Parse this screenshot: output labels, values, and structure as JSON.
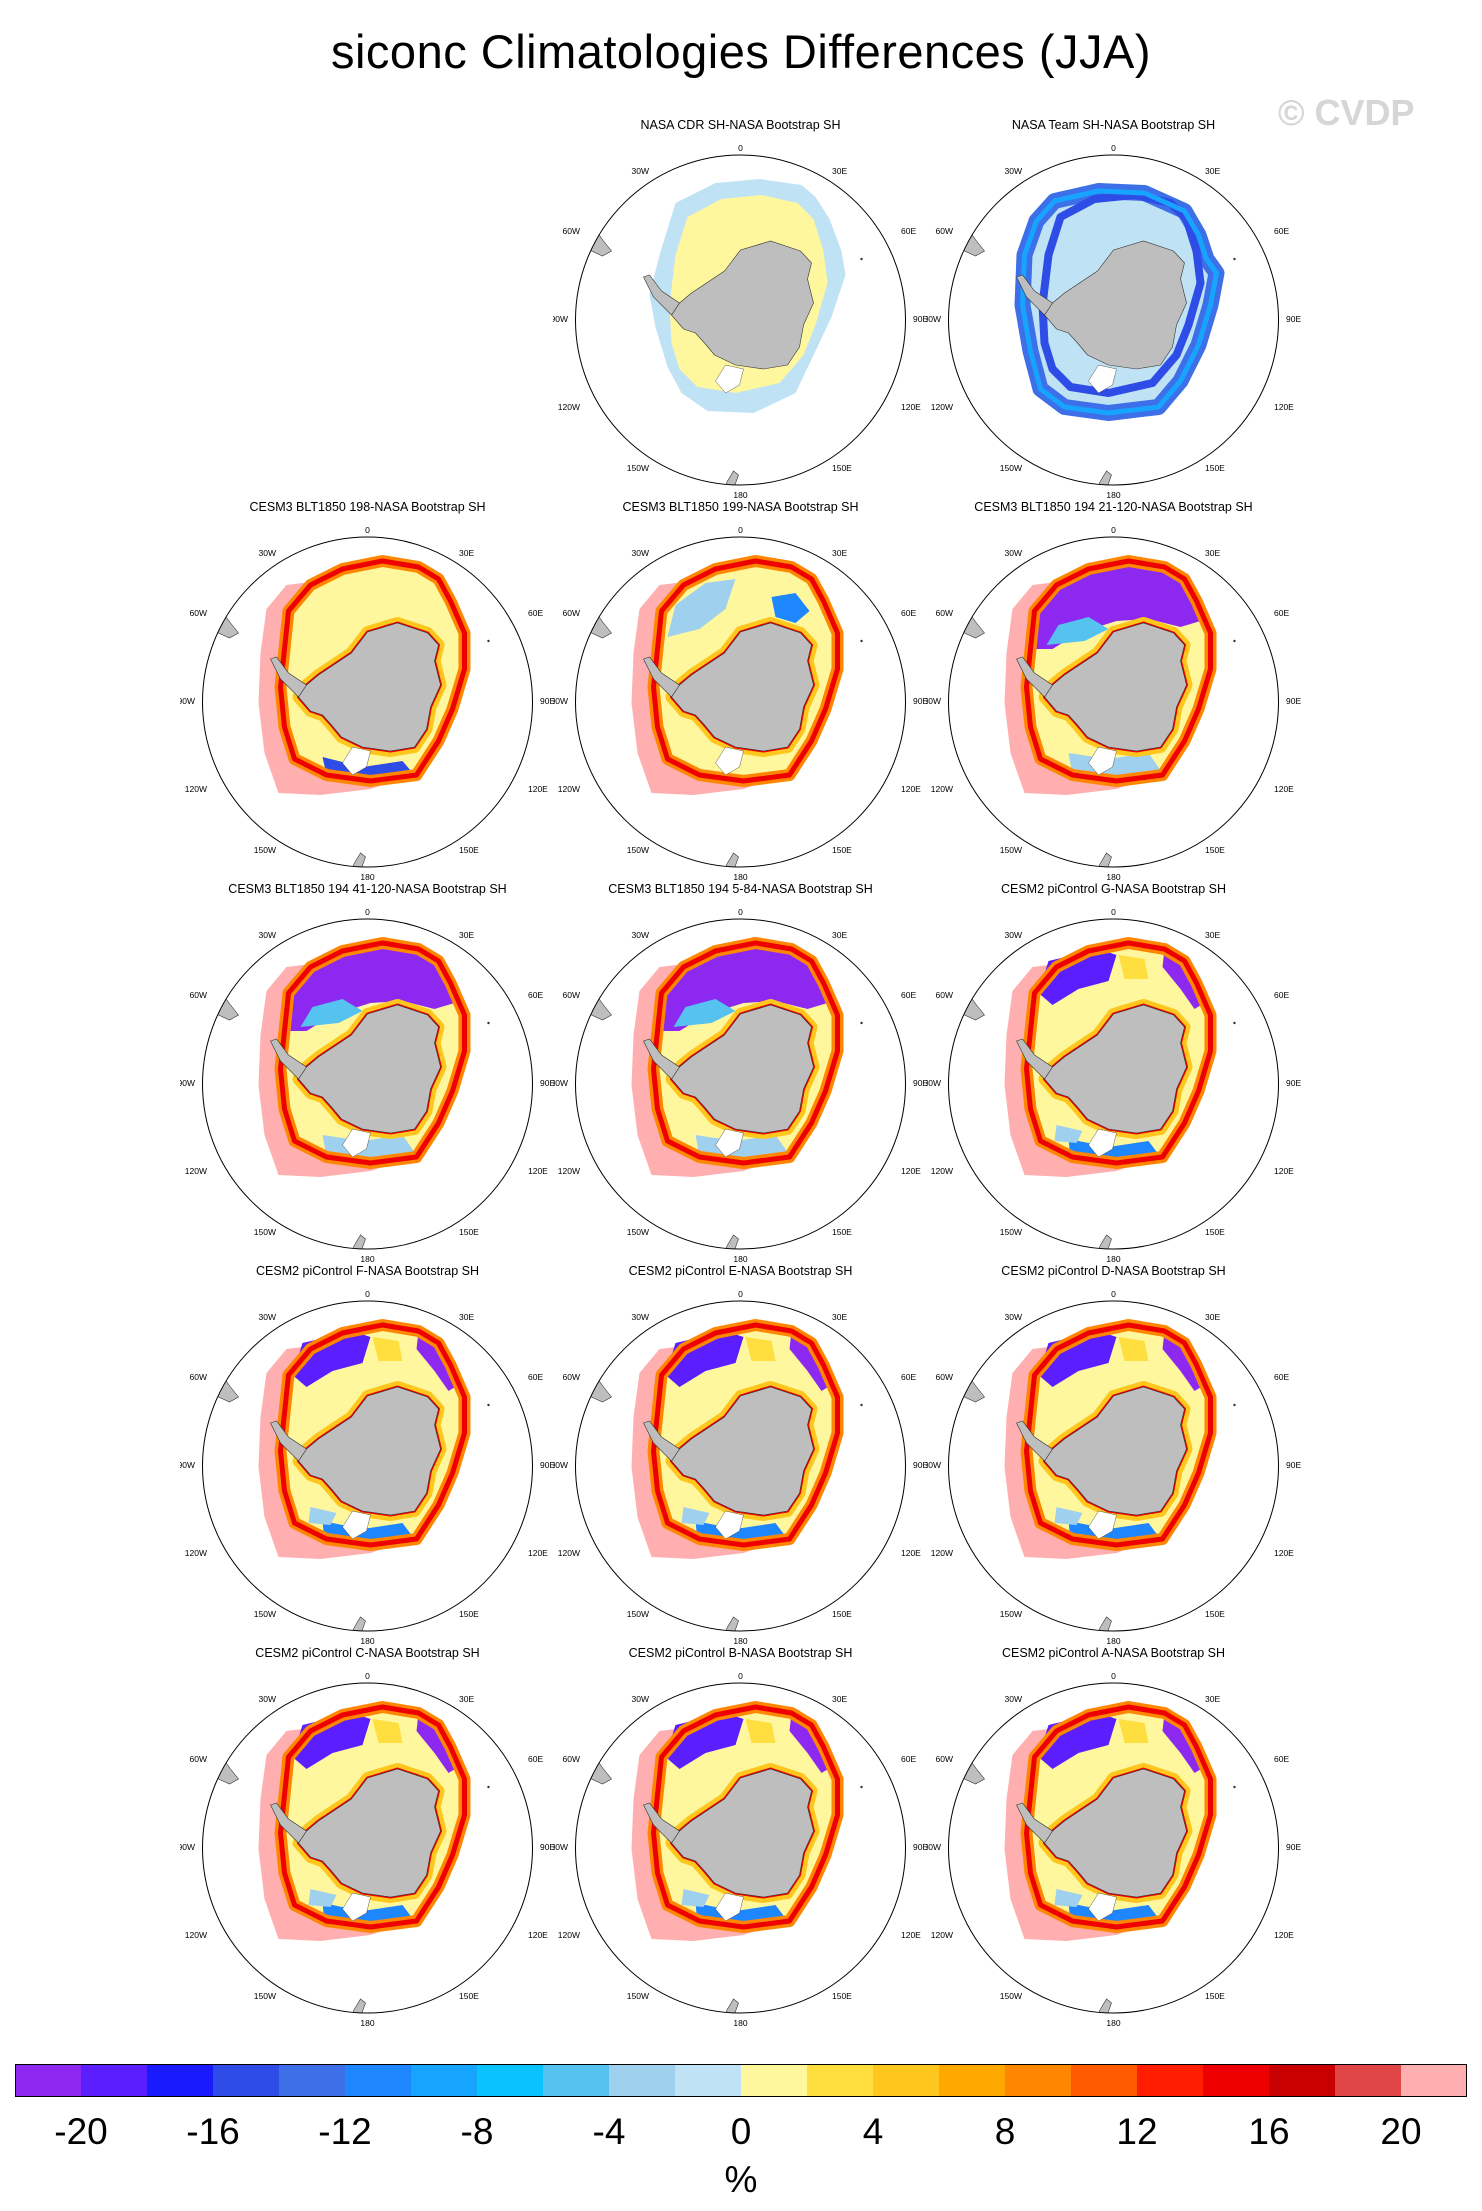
{
  "title": "siconc Climatologies Differences (JJA)",
  "watermark": "© CVDP",
  "land_color": "#bebebe",
  "panels": [
    {
      "label": "NASA CDR SH-NASA Bootstrap SH",
      "pattern": "cdr",
      "row": 0,
      "col": 1
    },
    {
      "label": "NASA Team SH-NASA Bootstrap SH",
      "pattern": "team",
      "row": 0,
      "col": 2
    },
    {
      "label": "CESM3 BLT1850 198-NASA Bootstrap SH",
      "pattern": "cesm3a",
      "row": 1,
      "col": 0
    },
    {
      "label": "CESM3 BLT1850 199-NASA Bootstrap SH",
      "pattern": "cesm3b",
      "row": 1,
      "col": 1
    },
    {
      "label": "CESM3 BLT1850 194 21-120-NASA Bootstrap SH",
      "pattern": "cesm3c",
      "row": 1,
      "col": 2
    },
    {
      "label": "CESM3 BLT1850 194 41-120-NASA Bootstrap SH",
      "pattern": "cesm3c",
      "row": 2,
      "col": 0
    },
    {
      "label": "CESM3 BLT1850 194 5-84-NASA Bootstrap SH",
      "pattern": "cesm3c",
      "row": 2,
      "col": 1
    },
    {
      "label": "CESM2 piControl G-NASA Bootstrap SH",
      "pattern": "cesm2",
      "row": 2,
      "col": 2
    },
    {
      "label": "CESM2 piControl F-NASA Bootstrap SH",
      "pattern": "cesm2",
      "row": 3,
      "col": 0
    },
    {
      "label": "CESM2 piControl E-NASA Bootstrap SH",
      "pattern": "cesm2",
      "row": 3,
      "col": 1
    },
    {
      "label": "CESM2 piControl D-NASA Bootstrap SH",
      "pattern": "cesm2",
      "row": 3,
      "col": 2
    },
    {
      "label": "CESM2 piControl C-NASA Bootstrap SH",
      "pattern": "cesm2",
      "row": 4,
      "col": 0
    },
    {
      "label": "CESM2 piControl B-NASA Bootstrap SH",
      "pattern": "cesm2",
      "row": 4,
      "col": 1
    },
    {
      "label": "CESM2 piControl A-NASA Bootstrap SH",
      "pattern": "cesm2",
      "row": 4,
      "col": 2
    }
  ],
  "map_labels": {
    "top": "0",
    "bottom": "180",
    "upper_left": "30W",
    "upper_right": "30E",
    "left_upper": "60W",
    "right_upper": "60E",
    "left": "90W",
    "right": "90E",
    "left_lower": "120W",
    "right_lower": "120E",
    "lower_left": "150W",
    "lower_right": "150E"
  },
  "colorbar": {
    "colors": [
      "#8d28f0",
      "#5a1eff",
      "#1a1aff",
      "#2e4de6",
      "#3c6fe8",
      "#1e86ff",
      "#17a4ff",
      "#08c3ff",
      "#55c2f0",
      "#9fd0ee",
      "#c0e2f5",
      "#fff79e",
      "#ffde40",
      "#ffc61e",
      "#ffa800",
      "#ff8600",
      "#ff5a00",
      "#ff1e00",
      "#ee0000",
      "#c80000",
      "#e04646",
      "#ffafaf"
    ],
    "tick_labels": [
      "-20",
      "-16",
      "-12",
      "-8",
      "-4",
      "0",
      "4",
      "8",
      "12",
      "16",
      "20"
    ],
    "unit": "%"
  }
}
